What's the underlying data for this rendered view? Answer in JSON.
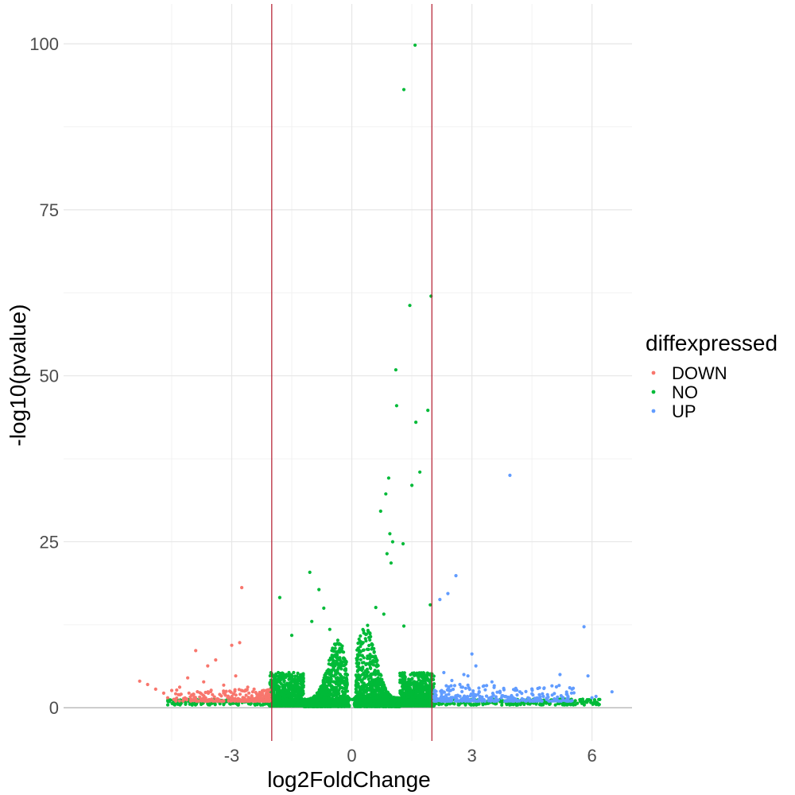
{
  "chart_data": {
    "type": "scatter",
    "title": "",
    "xlabel": "log2FoldChange",
    "ylabel": "-log10(pvalue)",
    "xlim": [
      -7.2,
      7.0
    ],
    "ylim": [
      -5,
      106
    ],
    "x_ticks": [
      -3,
      0,
      3,
      6
    ],
    "x_tick_labels": [
      "-3",
      "0",
      "3",
      "6"
    ],
    "y_ticks": [
      0,
      25,
      50,
      75,
      100
    ],
    "y_tick_labels": [
      "0",
      "25",
      "50",
      "75",
      "100"
    ],
    "x_minor_ticks": [
      -4.5,
      -1.5,
      1.5,
      4.5
    ],
    "y_minor_ticks": [
      12.5,
      37.5,
      62.5,
      87.5
    ],
    "grid": true,
    "vlines": [
      -2,
      2
    ],
    "vline_color": "#b2182b",
    "hline": 0,
    "legend": {
      "title": "diffexpressed",
      "position": "right",
      "entries": [
        "DOWN",
        "NO",
        "UP"
      ]
    },
    "colors": {
      "DOWN": "#F8766D",
      "NO": "#00BA38",
      "UP": "#619CFF"
    },
    "series": [
      {
        "name": "DOWN",
        "points": [
          [
            -5.3,
            4.0
          ],
          [
            -5.1,
            3.5
          ],
          [
            -4.9,
            2.8
          ],
          [
            -4.7,
            2.2
          ],
          [
            -4.5,
            2.6
          ],
          [
            -4.3,
            3.1
          ],
          [
            -4.1,
            4.5
          ],
          [
            -3.9,
            8.6
          ],
          [
            -3.7,
            3.9
          ],
          [
            -3.6,
            6.3
          ],
          [
            -3.4,
            7.2
          ],
          [
            -3.2,
            3.4
          ],
          [
            -3.0,
            9.4
          ],
          [
            -2.9,
            4.8
          ],
          [
            -2.8,
            9.8
          ],
          [
            -2.75,
            18.1
          ],
          [
            -2.6,
            3.1
          ],
          [
            -2.4,
            2.3
          ],
          [
            -2.2,
            2.6
          ],
          [
            -2.1,
            1.9
          ],
          [
            -4.6,
            1.5
          ],
          [
            -4.2,
            1.4
          ],
          [
            -3.8,
            1.6
          ],
          [
            -3.5,
            1.3
          ],
          [
            -3.1,
            1.5
          ],
          [
            -2.7,
            1.3
          ],
          [
            -2.3,
            1.2
          ],
          [
            -4.4,
            2.1
          ],
          [
            -3.3,
            2.0
          ],
          [
            -2.5,
            1.8
          ],
          [
            -4.0,
            1.9
          ],
          [
            -3.05,
            2.5
          ],
          [
            -2.15,
            1.5
          ]
        ]
      },
      {
        "name": "UP",
        "points": [
          [
            2.2,
            16.3
          ],
          [
            2.3,
            5.3
          ],
          [
            2.4,
            17.2
          ],
          [
            2.5,
            4.1
          ],
          [
            2.6,
            19.9
          ],
          [
            2.7,
            3.5
          ],
          [
            2.8,
            5.0
          ],
          [
            2.9,
            4.8
          ],
          [
            3.0,
            8.1
          ],
          [
            3.1,
            6.3
          ],
          [
            3.3,
            3.3
          ],
          [
            3.5,
            3.9
          ],
          [
            3.8,
            2.7
          ],
          [
            3.95,
            35.0
          ],
          [
            4.2,
            2.4
          ],
          [
            4.5,
            2.1
          ],
          [
            4.8,
            2.9
          ],
          [
            5.0,
            3.3
          ],
          [
            5.2,
            5.0
          ],
          [
            5.5,
            2.8
          ],
          [
            5.8,
            12.2
          ],
          [
            5.9,
            4.8
          ],
          [
            6.0,
            1.5
          ],
          [
            6.1,
            1.7
          ],
          [
            6.5,
            2.4
          ],
          [
            2.3,
            1.6
          ],
          [
            2.6,
            1.5
          ],
          [
            3.2,
            1.7
          ],
          [
            3.6,
            1.4
          ],
          [
            4.0,
            1.6
          ],
          [
            4.4,
            1.5
          ],
          [
            4.9,
            1.6
          ],
          [
            5.4,
            1.7
          ]
        ]
      },
      {
        "name": "NO",
        "points": [
          [
            1.58,
            99.8
          ],
          [
            1.3,
            93.1
          ],
          [
            1.45,
            60.6
          ],
          [
            1.98,
            62.0
          ],
          [
            1.1,
            50.9
          ],
          [
            1.12,
            45.5
          ],
          [
            1.6,
            43.0
          ],
          [
            1.9,
            44.8
          ],
          [
            1.7,
            35.5
          ],
          [
            0.92,
            34.6
          ],
          [
            1.5,
            33.5
          ],
          [
            0.85,
            32.2
          ],
          [
            0.72,
            29.6
          ],
          [
            0.95,
            26.2
          ],
          [
            1.02,
            25.0
          ],
          [
            1.28,
            24.7
          ],
          [
            0.88,
            23.2
          ],
          [
            0.98,
            21.8
          ],
          [
            -1.05,
            20.4
          ],
          [
            -0.82,
            17.8
          ],
          [
            -1.8,
            16.6
          ],
          [
            1.96,
            15.5
          ],
          [
            -0.7,
            15.0
          ],
          [
            0.6,
            15.1
          ],
          [
            -1.0,
            13.0
          ],
          [
            -0.55,
            11.8
          ],
          [
            -1.5,
            10.9
          ],
          [
            0.8,
            14.1
          ],
          [
            1.3,
            12.3
          ],
          [
            -4.58,
            0.9
          ]
        ]
      }
    ],
    "cloud": {
      "NO_count": 4200,
      "DOWN_count": 260,
      "UP_count": 320
    }
  }
}
